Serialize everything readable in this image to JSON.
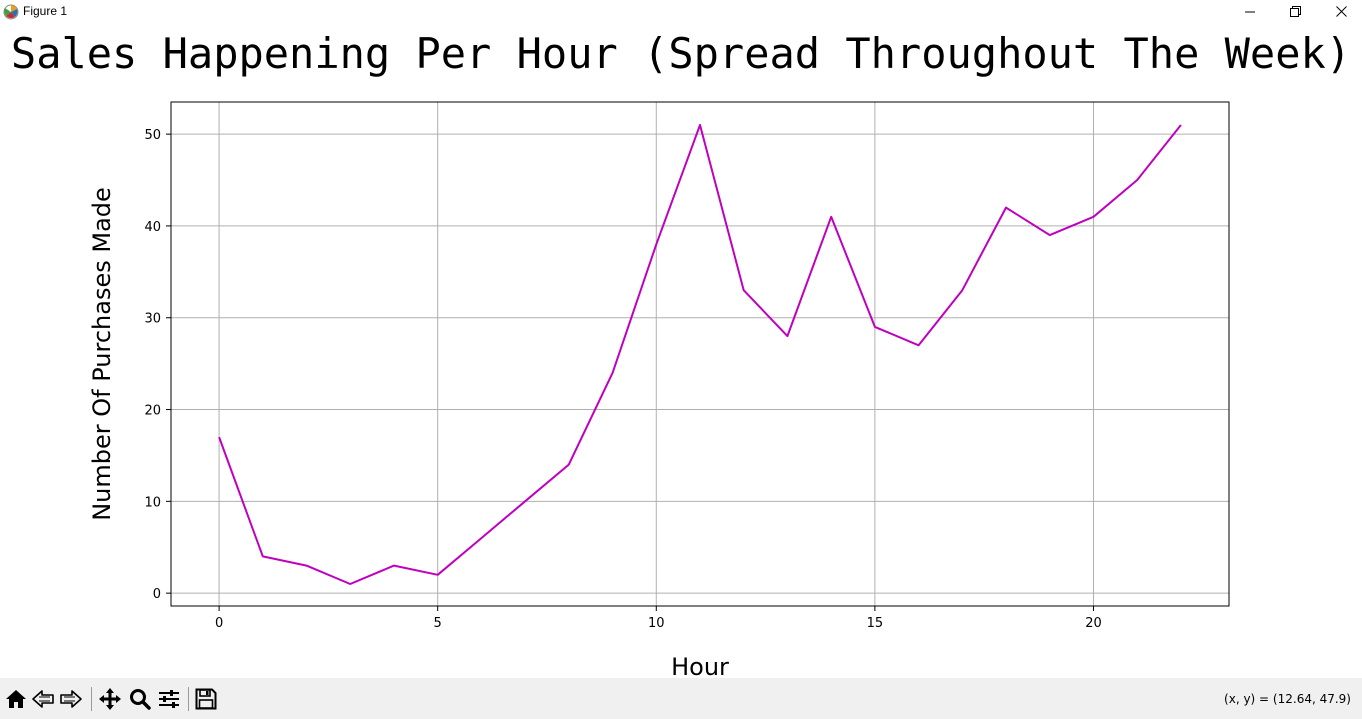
{
  "window": {
    "title": "Figure 1",
    "icons": [
      "matplotlib-app-icon",
      "minimize-icon",
      "maximize-icon",
      "close-icon"
    ]
  },
  "toolbar": {
    "buttons": [
      {
        "name": "home-button",
        "icon": "home-icon"
      },
      {
        "name": "back-button",
        "icon": "back-arrow-icon"
      },
      {
        "name": "forward-button",
        "icon": "forward-arrow-icon"
      },
      {
        "name": "pan-button",
        "icon": "move-icon"
      },
      {
        "name": "zoom-button",
        "icon": "magnifier-icon"
      },
      {
        "name": "configure-subplots-button",
        "icon": "sliders-icon"
      },
      {
        "name": "save-button",
        "icon": "floppy-disk-icon"
      }
    ],
    "coords": "(x, y) = (12.64, 47.9)"
  },
  "chart_data": {
    "type": "line",
    "title": "Sales Happening Per Hour (Spread Throughout The Week)",
    "xlabel": "Hour",
    "ylabel": "Number Of Purchases Made",
    "x": [
      0,
      1,
      2,
      3,
      4,
      5,
      6,
      7,
      8,
      9,
      10,
      11,
      12,
      13,
      14,
      15,
      16,
      17,
      18,
      19,
      20,
      21,
      22
    ],
    "series": [
      {
        "values": [
          17,
          4,
          3,
          1,
          3,
          2,
          6,
          10,
          14,
          24,
          38,
          51,
          33,
          28,
          41,
          29,
          27,
          33,
          42,
          39,
          41,
          45,
          51
        ],
        "color": "#bf00bf"
      }
    ],
    "xticks": [
      0,
      5,
      10,
      15,
      20
    ],
    "yticks": [
      0,
      10,
      20,
      30,
      40,
      50
    ],
    "xlim": [
      -1.1,
      23.1
    ],
    "ylim": [
      -1.4,
      53.5
    ],
    "grid": true
  }
}
